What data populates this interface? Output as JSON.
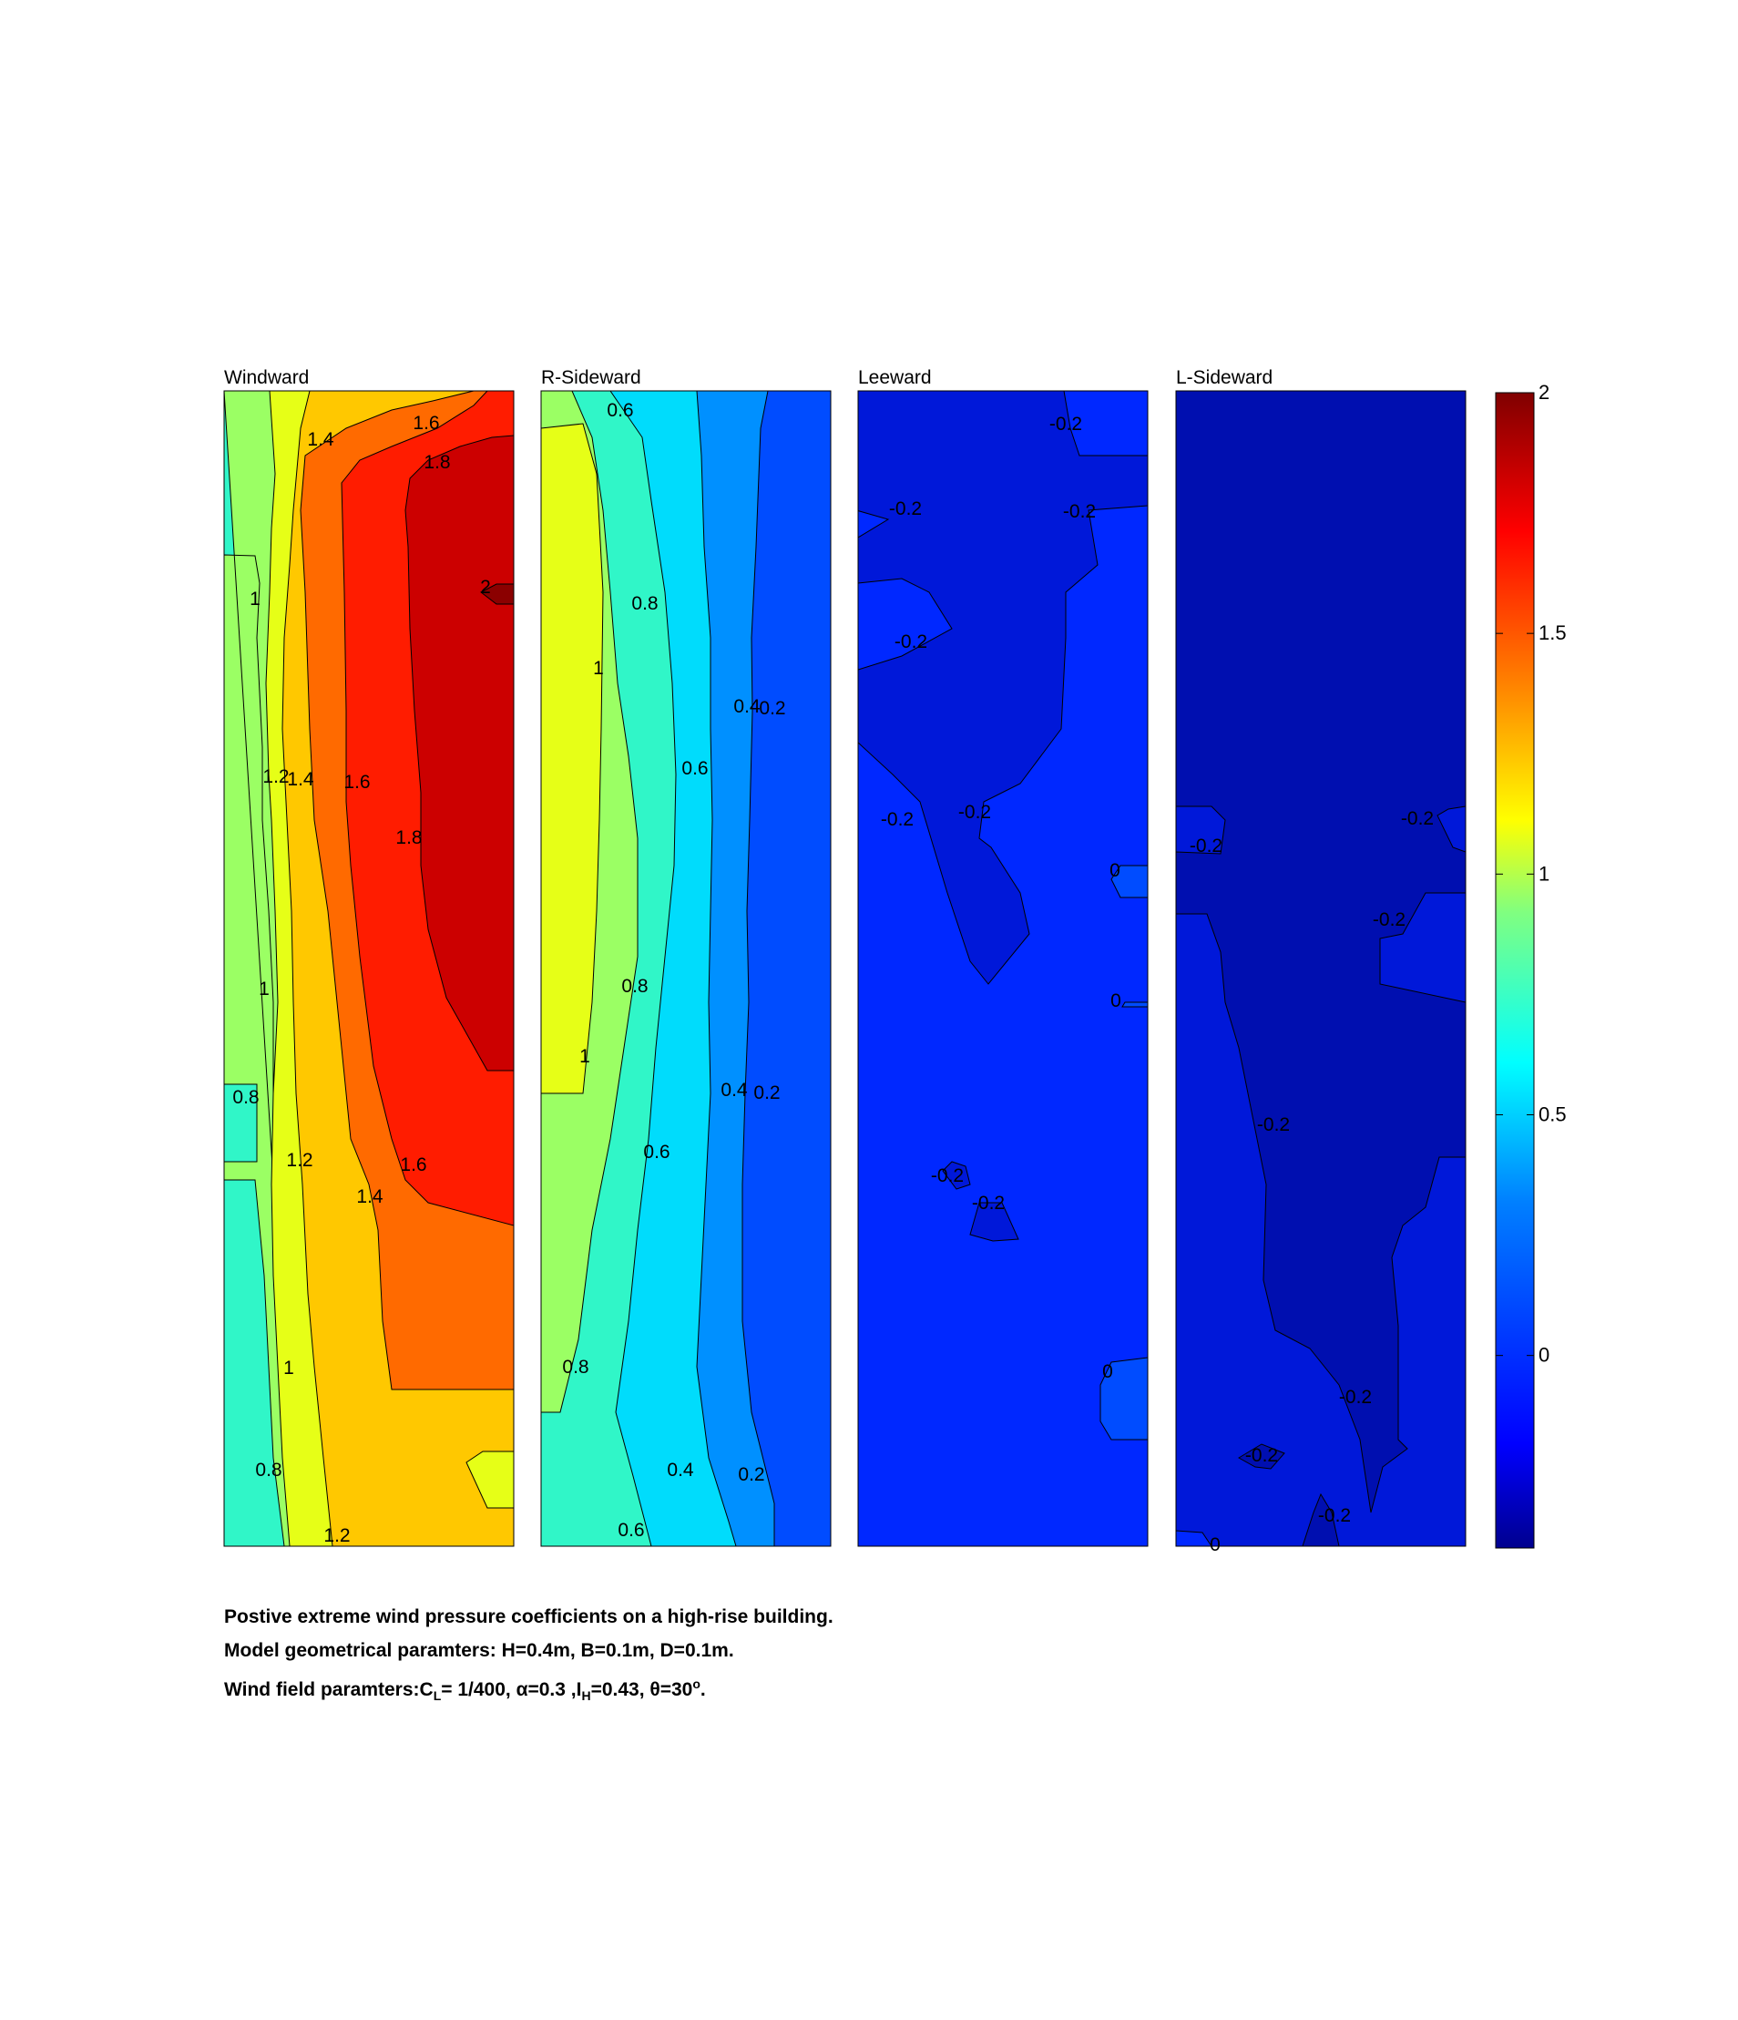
{
  "chart_data": {
    "type": "heatmap",
    "subtype": "filled-contour",
    "colormap": "jet",
    "grid": false,
    "colorbar": {
      "position": "right",
      "range": [
        -0.4,
        2
      ],
      "ticks": [
        "2",
        "1.5",
        "1",
        "0.5",
        "0"
      ]
    },
    "panels": [
      {
        "title": "Windward",
        "contour_labels": [
          "1.4",
          "1.6",
          "1.8",
          "2",
          "1",
          "1.2",
          "1.4",
          "1.6",
          "1.8",
          "1",
          "0.8",
          "1.2",
          "1.6",
          "1.4",
          "1",
          "0.8",
          "1.2"
        ],
        "levels": [
          {
            "value": 0.8,
            "color": "#30f6c8"
          },
          {
            "value": 1.0,
            "color": "#9bff64"
          },
          {
            "value": 1.2,
            "color": "#e6ff17"
          },
          {
            "value": 1.4,
            "color": "#ffc800"
          },
          {
            "value": 1.6,
            "color": "#ff6a00"
          },
          {
            "value": 1.8,
            "color": "#ff1c00"
          },
          {
            "value": 2.0,
            "color": "#cc0000"
          },
          {
            "value": 2.1,
            "color": "#8b0000"
          }
        ]
      },
      {
        "title": "R-Sideward",
        "contour_labels": [
          "0.6",
          "0.8",
          "1",
          "0.4",
          "0.2",
          "0.6",
          "0.8",
          "1",
          "0.4",
          "0.2",
          "0.6",
          "0.8",
          "0.4",
          "0.2",
          "0.6"
        ],
        "levels": [
          {
            "value": 0.2,
            "color": "#004cff"
          },
          {
            "value": 0.4,
            "color": "#0090ff"
          },
          {
            "value": 0.6,
            "color": "#00dcfc"
          },
          {
            "value": 0.8,
            "color": "#30f6c8"
          },
          {
            "value": 1.0,
            "color": "#9bff64"
          },
          {
            "value": 1.2,
            "color": "#e6ff17"
          }
        ]
      },
      {
        "title": "Leeward",
        "contour_labels": [
          "-0.2",
          "-0.2",
          "-0.2",
          "-0.2",
          "-0.2",
          "-0.2",
          "0",
          "0",
          "-0.2",
          "-0.2",
          "0"
        ],
        "levels": [
          {
            "value": -0.2,
            "color": "#0018d9"
          },
          {
            "value": 0.0,
            "color": "#0028ff"
          },
          {
            "value": 0.2,
            "color": "#004cff"
          }
        ]
      },
      {
        "title": "L-Sideward",
        "contour_labels": [
          "-0.2",
          "-0.2",
          "-0.2",
          "-0.2",
          "-0.2",
          "-0.2",
          "-0.2",
          "0"
        ],
        "levels": [
          {
            "value": -0.4,
            "color": "#000fb0"
          },
          {
            "value": -0.2,
            "color": "#0018d9"
          },
          {
            "value": 0.0,
            "color": "#0028ff"
          }
        ]
      }
    ],
    "caption": [
      "Postive extreme  wind pressure coefficients on a high-rise building.",
      "Model geometrical paramters: H=0.4m, B=0.1m, D=0.1m.",
      "Wind field paramters:C_L= 1/400, α=0.3 ,I_H=0.43, θ=30°."
    ]
  },
  "caption": {
    "line1": "Postive extreme  wind pressure coefficients on a high-rise building.",
    "line2": "Model geometrical paramters: H=0.4m, B=0.1m, D=0.1m.",
    "line3_prefix": "Wind field paramters:C",
    "line3_sub1": "L",
    "line3_mid": "= 1/400, α=0.3 ,I",
    "line3_sub2": "H",
    "line3_mid2": "=0.43, θ=30",
    "line3_sup": "o",
    "line3_end": "."
  }
}
